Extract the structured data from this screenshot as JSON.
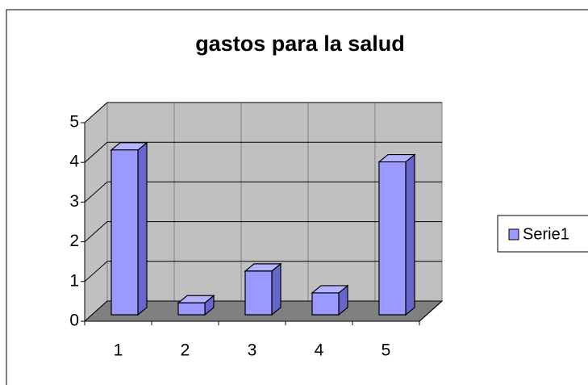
{
  "chart_data": {
    "type": "bar",
    "title": "gastos para la salud",
    "categories": [
      "1",
      "2",
      "3",
      "4",
      "5"
    ],
    "series": [
      {
        "name": "Serie1",
        "color": "#9999ff",
        "values": [
          4.15,
          0.3,
          1.1,
          0.55,
          3.85
        ]
      }
    ],
    "ylim": [
      0,
      5
    ],
    "yticks": [
      0,
      1,
      2,
      3,
      4,
      5
    ],
    "grid": true,
    "legend": "right"
  }
}
